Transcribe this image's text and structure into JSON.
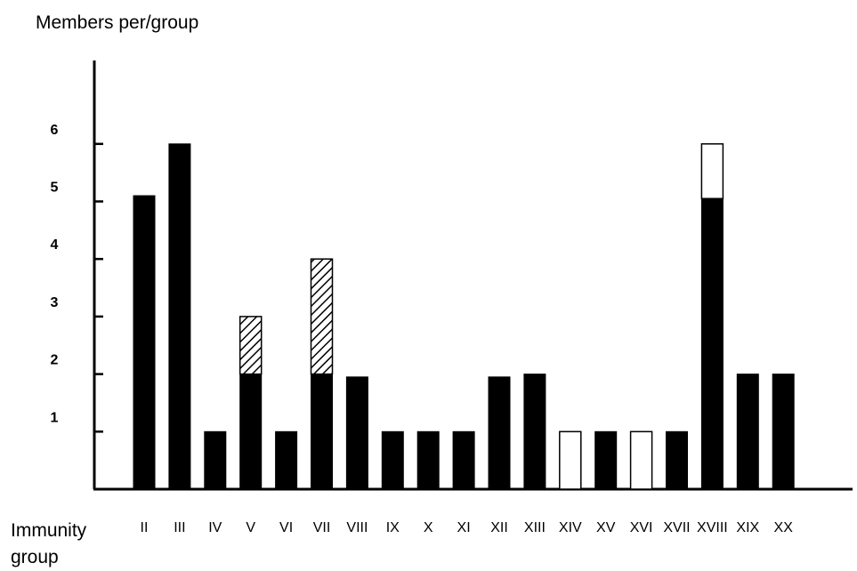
{
  "chart_data": {
    "type": "bar",
    "stacked": true,
    "ylabel": "Members per/group",
    "xlabel": "Immunity\ngroup",
    "yticks": [
      1,
      2,
      3,
      4,
      5,
      6
    ],
    "ylim": [
      0,
      7
    ],
    "grid": false,
    "legend": "none",
    "categories": [
      "II",
      "III",
      "IV",
      "V",
      "VI",
      "VII",
      "VIII",
      "IX",
      "X",
      "XI",
      "XII",
      "XIII",
      "XIV",
      "XV",
      "XVI",
      "XVII",
      "XVIII",
      "XIX",
      "XX"
    ],
    "series": [
      {
        "fill": "solid",
        "values": [
          5.1,
          6,
          1,
          2,
          1,
          2,
          1.95,
          1,
          1,
          1,
          1.95,
          2,
          0,
          1,
          0,
          1,
          5.05,
          2,
          2
        ]
      },
      {
        "fill": "hatched",
        "values": [
          0,
          0,
          0,
          1,
          0,
          2,
          0,
          0,
          0,
          0,
          0,
          0,
          0,
          0,
          0,
          0,
          0,
          0,
          0
        ]
      },
      {
        "fill": "open",
        "values": [
          0,
          0,
          0,
          0,
          0,
          0,
          0,
          0,
          0,
          0,
          0,
          0,
          1,
          0,
          1,
          0,
          0.95,
          0,
          0
        ]
      }
    ],
    "colors": {
      "solid": "#000000",
      "open": "#ffffff",
      "outline": "#000000"
    }
  }
}
